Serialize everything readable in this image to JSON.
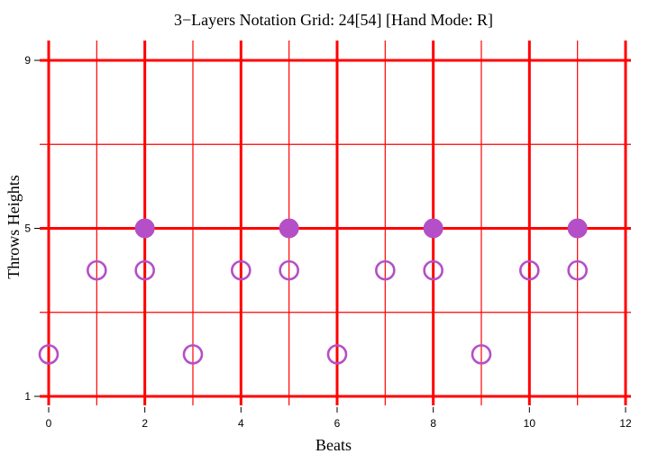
{
  "chart_data": {
    "type": "scatter",
    "title": "3−Layers Notation Grid: 24[54]  [Hand Mode: R]",
    "xlabel": "Beats",
    "ylabel": "Throws Heights",
    "xlim": [
      0,
      12
    ],
    "ylim": [
      1,
      9
    ],
    "x_ticks": [
      0,
      2,
      4,
      6,
      8,
      10,
      12
    ],
    "y_ticks": [
      1,
      5,
      9
    ],
    "grid": true,
    "grid_color": "#ff0000",
    "marker_color": "#b44fc8",
    "series": [
      {
        "marker": "open-circle",
        "points": [
          {
            "x": 0,
            "y": 2
          },
          {
            "x": 3,
            "y": 2
          },
          {
            "x": 6,
            "y": 2
          },
          {
            "x": 9,
            "y": 2
          },
          {
            "x": 1,
            "y": 4
          },
          {
            "x": 2,
            "y": 4
          },
          {
            "x": 4,
            "y": 4
          },
          {
            "x": 5,
            "y": 4
          },
          {
            "x": 7,
            "y": 4
          },
          {
            "x": 8,
            "y": 4
          },
          {
            "x": 10,
            "y": 4
          },
          {
            "x": 11,
            "y": 4
          }
        ]
      },
      {
        "marker": "filled-circle",
        "points": [
          {
            "x": 2,
            "y": 5
          },
          {
            "x": 5,
            "y": 5
          },
          {
            "x": 8,
            "y": 5
          },
          {
            "x": 11,
            "y": 5
          }
        ]
      }
    ]
  }
}
